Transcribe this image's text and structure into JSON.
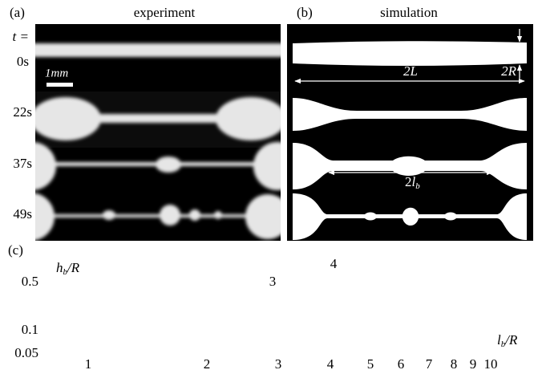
{
  "panel_a": {
    "label": "(a)",
    "title": "experiment",
    "scale_bar": "1mm"
  },
  "panel_b": {
    "label": "(b)",
    "title": "simulation",
    "length_label": "2L",
    "radius_label": "2R",
    "bead_label": {
      "coef": "2",
      "symbol": "l",
      "sub": "b"
    }
  },
  "time_labels": [
    "t =",
    "0s",
    "22s",
    "37s",
    "49s"
  ],
  "panel_c": {
    "label": "(c)",
    "y_label": {
      "symbol": "h",
      "sub": "b",
      "rest": "/R"
    },
    "x_label": {
      "symbol": "l",
      "sub": "b",
      "rest": "/R"
    },
    "y_ticks": [
      "0.5",
      "0.1",
      "0.05"
    ],
    "stray_labels": [
      "3",
      "4"
    ],
    "x_ticks": [
      "1",
      "2",
      "3",
      "4",
      "5",
      "6",
      "7",
      "8",
      "9",
      "10"
    ]
  }
}
